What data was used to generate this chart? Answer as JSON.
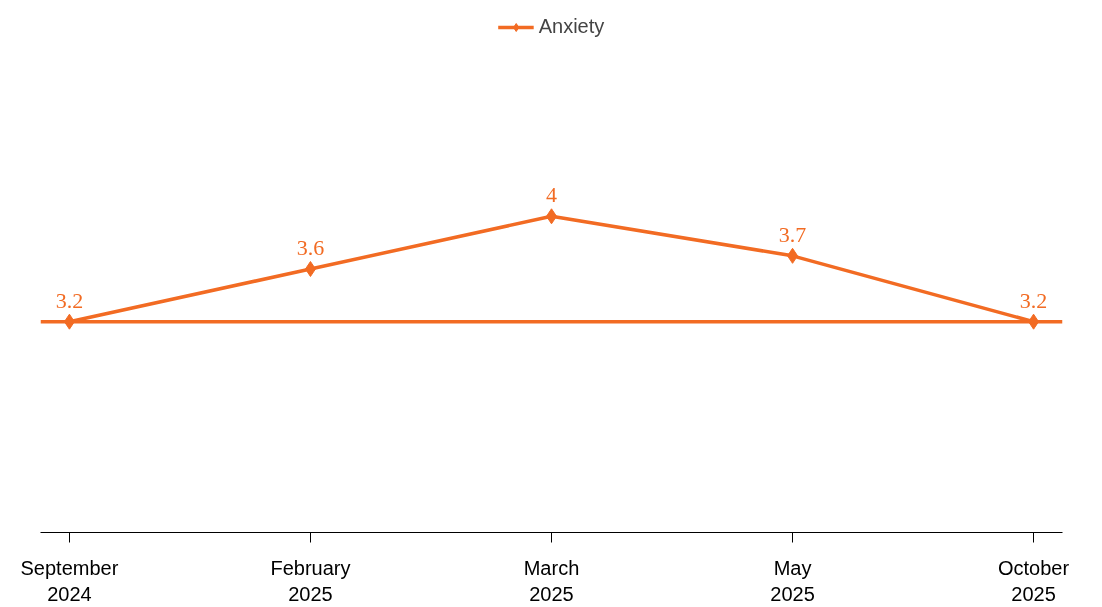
{
  "chart_data": {
    "type": "line",
    "categories": [
      "September\n2024",
      "February\n2025",
      "March\n2025",
      "May\n2025",
      "October\n2025"
    ],
    "series": [
      {
        "name": "Anxiety",
        "color": "#f26b23",
        "values": [
          3.2,
          3.6,
          4,
          3.7,
          3.2
        ]
      }
    ],
    "data_labels": true,
    "marker": "diamond",
    "line_style": "solid",
    "legend": "top",
    "grid": false,
    "tick_labels": "x",
    "ref_lines": [
      {
        "axis": "y",
        "value": 3.2,
        "color": "#f26b23",
        "line_style": "solid"
      }
    ]
  }
}
